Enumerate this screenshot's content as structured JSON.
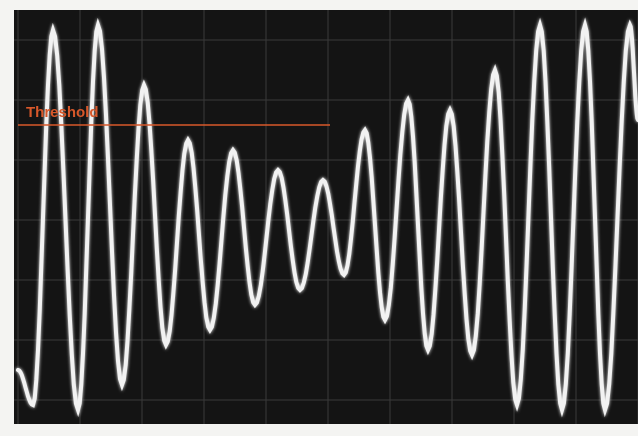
{
  "annotation": {
    "label": "Threshold"
  }
}
